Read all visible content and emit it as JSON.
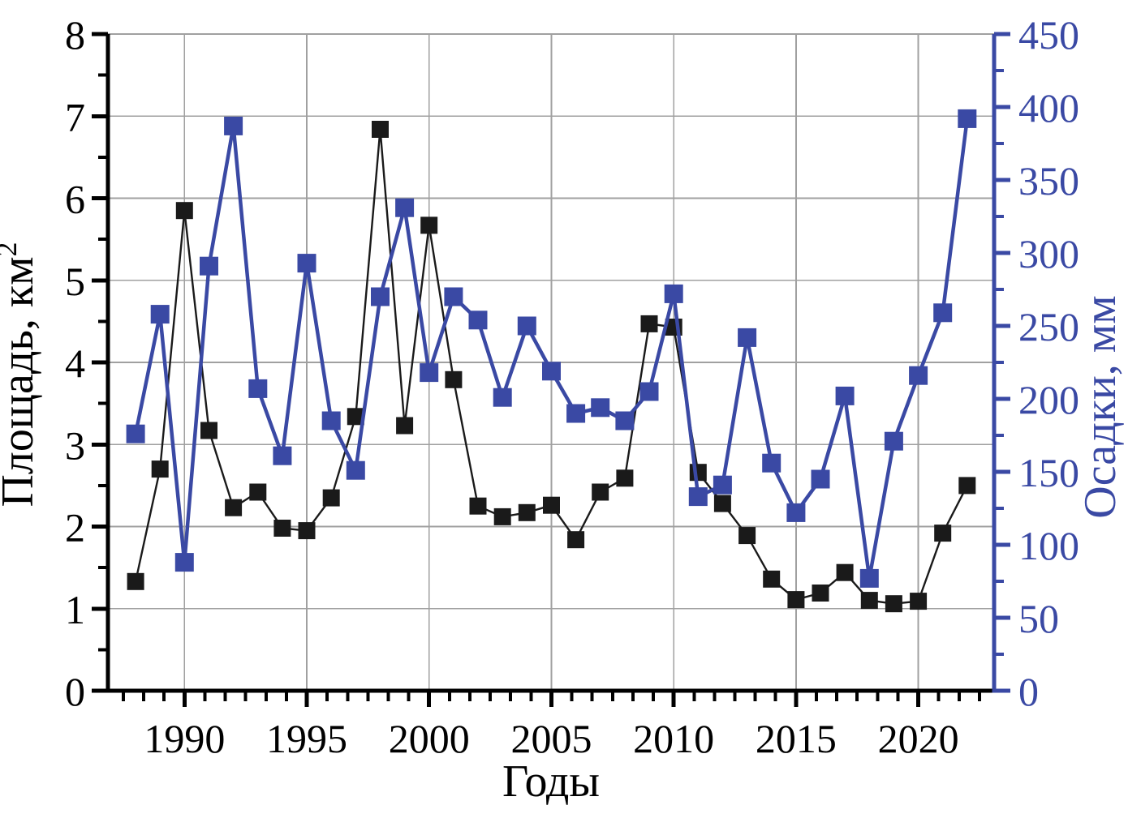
{
  "chart_data": {
    "type": "line",
    "title": "",
    "xlabel": "Годы",
    "ylabel_left": "Площадь, км²",
    "ylabel_left_base": "Площадь, км",
    "ylabel_left_sup": "2",
    "ylabel_right": "Осадки, мм",
    "grid": true,
    "legend": "none",
    "x": [
      1988,
      1989,
      1990,
      1991,
      1992,
      1993,
      1994,
      1995,
      1996,
      1997,
      1998,
      1999,
      2000,
      2001,
      2002,
      2003,
      2004,
      2005,
      2006,
      2007,
      2008,
      2009,
      2010,
      2011,
      2012,
      2013,
      2014,
      2015,
      2016,
      2017,
      2018,
      2019,
      2020,
      2021,
      2022
    ],
    "series": [
      {
        "name": "Площадь, км²",
        "axis": "left",
        "marker": "square",
        "color": "#1a1a1a",
        "values": [
          1.33,
          2.7,
          5.85,
          3.17,
          2.23,
          2.42,
          1.98,
          1.95,
          2.35,
          3.34,
          6.84,
          3.23,
          5.67,
          3.79,
          2.25,
          2.12,
          2.17,
          2.26,
          1.84,
          2.42,
          2.59,
          4.47,
          4.43,
          2.66,
          2.28,
          1.89,
          1.36,
          1.11,
          1.19,
          1.44,
          1.1,
          1.06,
          1.09,
          1.92,
          2.5
        ]
      },
      {
        "name": "Осадки, мм",
        "axis": "right",
        "marker": "square",
        "color": "#3a49a4",
        "values": [
          176,
          258,
          88,
          291,
          387,
          207,
          161,
          293,
          185,
          151,
          270,
          331,
          218,
          270,
          254,
          201,
          250,
          219,
          190,
          194,
          185,
          205,
          272,
          133,
          141,
          242,
          156,
          122,
          145,
          202,
          77,
          171,
          216,
          259,
          392
        ]
      }
    ],
    "x_axis": {
      "range": [
        1986.87,
        2023.1
      ],
      "major_ticks": [
        1990,
        1995,
        2000,
        2005,
        2010,
        2015,
        2020
      ],
      "minor_divisions_per_major": 6
    },
    "left_axis": {
      "range": [
        0,
        8
      ],
      "major_ticks": [
        0,
        1,
        2,
        3,
        4,
        5,
        6,
        7,
        8
      ],
      "minor_step": 0.5
    },
    "right_axis": {
      "range": [
        0,
        450
      ],
      "major_ticks": [
        0,
        50,
        100,
        150,
        200,
        250,
        300,
        350,
        400,
        450
      ],
      "minor_step": 25
    },
    "colors": {
      "grid": "#a0a0a0",
      "axis_black": "#000000",
      "axis_blue": "#3a49a4",
      "series_black": "#1a1a1a",
      "series_blue": "#3a49a4",
      "background": "#ffffff"
    }
  }
}
